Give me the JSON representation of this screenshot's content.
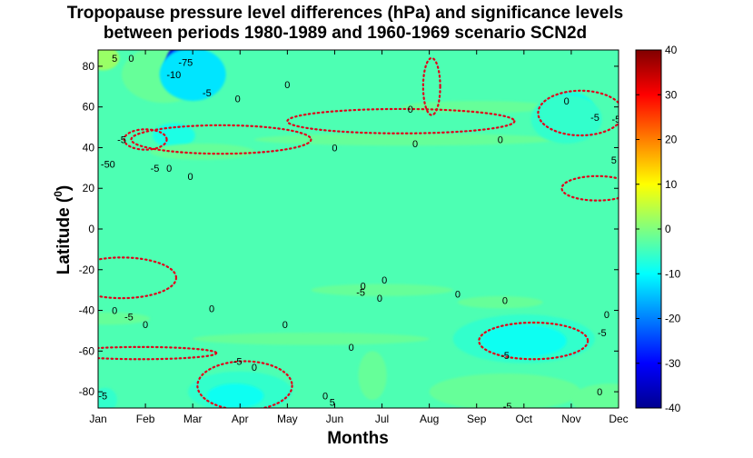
{
  "chart_data": {
    "type": "heatmap",
    "title_line1": "Tropopause pressure level differences (hPa) and significance levels",
    "title_line2": "between periods 1980-1989 and 1960-1969 scenario SCN2d",
    "xlabel": "Months",
    "ylabel": "Latitude (",
    "ylabel_sup": "0",
    "ylabel_end": ")",
    "x_categories": [
      "Jan",
      "Feb",
      "Mar",
      "Apr",
      "May",
      "Jun",
      "Jul",
      "Aug",
      "Sep",
      "Oct",
      "Nov",
      "Dec"
    ],
    "y_ticks": [
      "80",
      "60",
      "40",
      "20",
      "0",
      "-20",
      "-40",
      "-60",
      "-80"
    ],
    "y_tick_values": [
      80,
      60,
      40,
      20,
      0,
      -20,
      -40,
      -60,
      -80
    ],
    "ylim": [
      -88,
      88
    ],
    "colorbar": {
      "min": -40,
      "max": 40,
      "ticks": [
        "40",
        "30",
        "20",
        "10",
        "0",
        "-10",
        "-20",
        "-30",
        "-40"
      ],
      "tick_values": [
        40,
        30,
        20,
        10,
        0,
        -10,
        -20,
        -30,
        -40
      ],
      "colormap": "jet"
    },
    "background_value": -4,
    "regions": [
      {
        "value": -2,
        "month": 1.4,
        "lat": 76,
        "rm": 0.9,
        "rl": 14
      },
      {
        "value": 2,
        "month": 0.1,
        "lat": 84,
        "rm": 0.35,
        "rl": 6
      },
      {
        "value": -8,
        "month": 1.6,
        "lat": 46,
        "rm": 0.45,
        "rl": 6
      },
      {
        "value": -2,
        "month": 2.2,
        "lat": 38,
        "rm": 1.1,
        "rl": 4
      },
      {
        "value": -2,
        "month": 6.5,
        "lat": 44,
        "rm": 3.2,
        "rl": 3
      },
      {
        "value": -2,
        "month": 8.0,
        "lat": 60,
        "rm": 1.6,
        "rl": 3
      },
      {
        "value": -9,
        "month": 10.0,
        "lat": 58,
        "rm": 0.5,
        "rl": 9
      },
      {
        "value": -6,
        "month": 9.9,
        "lat": 54,
        "rm": 0.75,
        "rl": 12
      },
      {
        "value": -35,
        "month": 1.8,
        "lat": 83,
        "rm": 0.35,
        "rl": 8
      },
      {
        "value": -22,
        "month": 1.9,
        "lat": 80,
        "rm": 0.5,
        "rl": 10
      },
      {
        "value": -12,
        "month": 2.0,
        "lat": 76,
        "rm": 0.7,
        "rl": 13
      },
      {
        "value": -2,
        "month": 0.2,
        "lat": -44,
        "rm": 0.9,
        "rl": 3
      },
      {
        "value": -2,
        "month": 6.0,
        "lat": -30,
        "rm": 1.5,
        "rl": 3
      },
      {
        "value": -2,
        "month": 8.5,
        "lat": -36,
        "rm": 0.9,
        "rl": 3
      },
      {
        "value": -2,
        "month": 4.5,
        "lat": -54,
        "rm": 2.5,
        "rl": 3
      },
      {
        "value": -6,
        "month": 9.0,
        "lat": -54,
        "rm": 1.5,
        "rl": 12
      },
      {
        "value": -9,
        "month": 9.0,
        "lat": -55,
        "rm": 0.9,
        "rl": 8
      },
      {
        "value": -6,
        "month": 3.0,
        "lat": -80,
        "rm": 1.1,
        "rl": 10
      },
      {
        "value": -9,
        "month": 2.9,
        "lat": -82,
        "rm": 0.6,
        "rl": 6
      },
      {
        "value": -2,
        "month": 5.8,
        "lat": -72,
        "rm": 0.3,
        "rl": 12
      },
      {
        "value": -6,
        "month": 0.15,
        "lat": -84,
        "rm": 0.25,
        "rl": 6
      },
      {
        "value": -2,
        "month": 8.6,
        "lat": -80,
        "rm": 1.6,
        "rl": 9
      },
      {
        "value": -2,
        "month": 10.8,
        "lat": -84,
        "rm": 0.8,
        "rl": 8
      }
    ],
    "contour_labels": [
      {
        "text": "0",
        "month": 0.7,
        "lat": 84
      },
      {
        "text": "5",
        "month": 0.35,
        "lat": 84
      },
      {
        "text": "-75",
        "month": 1.85,
        "lat": 82
      },
      {
        "text": "-10",
        "month": 1.6,
        "lat": 76
      },
      {
        "text": "-5",
        "month": 2.3,
        "lat": 67
      },
      {
        "text": "0",
        "month": 2.95,
        "lat": 64
      },
      {
        "text": "0",
        "month": 4.0,
        "lat": 71
      },
      {
        "text": "-5",
        "month": 0.5,
        "lat": 44
      },
      {
        "text": "-5",
        "month": 1.2,
        "lat": 30
      },
      {
        "text": "0",
        "month": 1.5,
        "lat": 30
      },
      {
        "text": "-5",
        "month": 0.15,
        "lat": 32
      },
      {
        "text": "0",
        "month": 0.3,
        "lat": 32
      },
      {
        "text": "0",
        "month": 1.95,
        "lat": 26
      },
      {
        "text": "0",
        "month": 5.0,
        "lat": 40
      },
      {
        "text": "0",
        "month": 6.6,
        "lat": 59
      },
      {
        "text": "0",
        "month": 6.7,
        "lat": 42
      },
      {
        "text": "0",
        "month": 8.5,
        "lat": 44
      },
      {
        "text": "0",
        "month": 9.9,
        "lat": 63
      },
      {
        "text": "-5",
        "month": 10.5,
        "lat": 55
      },
      {
        "text": "-5",
        "month": 10.95,
        "lat": 54
      },
      {
        "text": "5",
        "month": 10.9,
        "lat": 34
      },
      {
        "text": "0",
        "month": 11.05,
        "lat": 31
      },
      {
        "text": "0",
        "month": 5.6,
        "lat": -28
      },
      {
        "text": "-5",
        "month": 5.55,
        "lat": -31
      },
      {
        "text": "0",
        "month": 5.95,
        "lat": -34
      },
      {
        "text": "0",
        "month": 6.05,
        "lat": -25
      },
      {
        "text": "0",
        "month": 7.6,
        "lat": -32
      },
      {
        "text": "0",
        "month": 8.6,
        "lat": -35
      },
      {
        "text": "0",
        "month": 0.35,
        "lat": -40
      },
      {
        "text": "-5",
        "month": 0.65,
        "lat": -43
      },
      {
        "text": "0",
        "month": 1.0,
        "lat": -47
      },
      {
        "text": "0",
        "month": 2.4,
        "lat": -39
      },
      {
        "text": "0",
        "month": 3.95,
        "lat": -47
      },
      {
        "text": "0",
        "month": 5.35,
        "lat": -58
      },
      {
        "text": "-5",
        "month": 8.6,
        "lat": -62
      },
      {
        "text": "0",
        "month": 10.75,
        "lat": -42
      },
      {
        "text": "-5",
        "month": 10.65,
        "lat": -51
      },
      {
        "text": "-5",
        "month": 2.95,
        "lat": -65
      },
      {
        "text": "0",
        "month": 3.3,
        "lat": -68
      },
      {
        "text": "-5",
        "month": 0.1,
        "lat": -82
      },
      {
        "text": "0",
        "month": 4.8,
        "lat": -82
      },
      {
        "text": "5",
        "month": 4.95,
        "lat": -85
      },
      {
        "text": "-5",
        "month": 8.65,
        "lat": -87
      },
      {
        "text": "0",
        "month": 10.6,
        "lat": -80
      }
    ],
    "significance_contours": [
      {
        "month": 1.0,
        "lat": 44,
        "rm": 0.45,
        "rl": 5
      },
      {
        "month": 2.6,
        "lat": 44,
        "rm": 1.9,
        "rl": 7
      },
      {
        "month": 10.2,
        "lat": 57,
        "rm": 0.9,
        "rl": 11
      },
      {
        "month": 9.2,
        "lat": -55,
        "rm": 1.15,
        "rl": 9
      },
      {
        "month": 3.1,
        "lat": -77,
        "rm": 1.0,
        "rl": 12
      },
      {
        "month": 7.05,
        "lat": 70,
        "rm": 0.18,
        "rl": 14
      },
      {
        "month": 10.55,
        "lat": 20,
        "rm": 0.75,
        "rl": 6
      },
      {
        "month": 0.5,
        "lat": -24,
        "rm": 1.15,
        "rl": 10
      },
      {
        "month": 0.9,
        "lat": -61,
        "rm": 1.6,
        "rl": 3
      },
      {
        "month": 6.4,
        "lat": 53,
        "rm": 2.4,
        "rl": 6
      }
    ]
  }
}
